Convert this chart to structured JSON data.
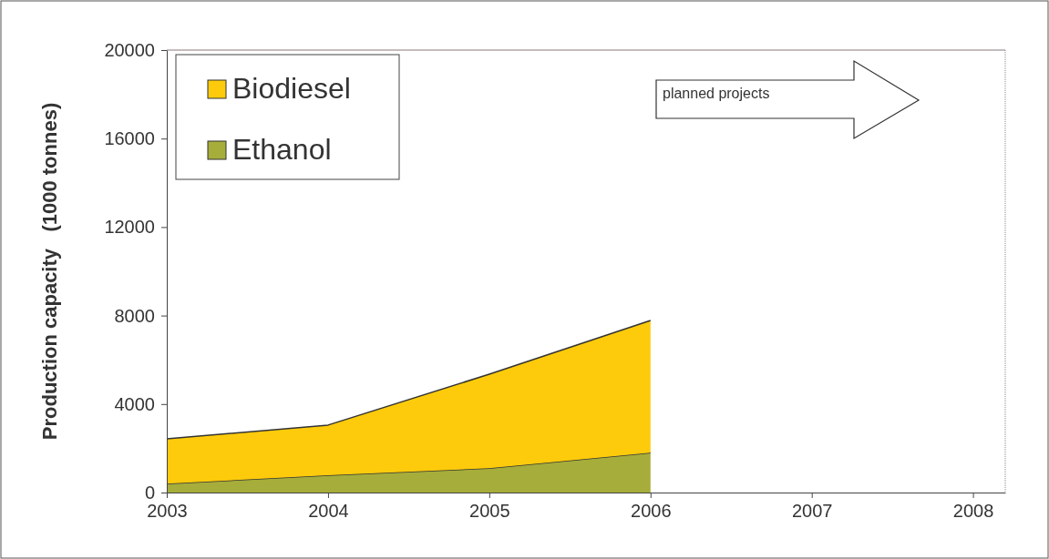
{
  "chart_data": {
    "type": "area",
    "stacked": true,
    "ylabel": "Production capacity   (1000 tonnes)",
    "x": [
      2003,
      2004,
      2005,
      2006
    ],
    "xlim": [
      2003,
      2008.2
    ],
    "xticks": [
      2003,
      2004,
      2005,
      2006,
      2007,
      2008
    ],
    "ylim": [
      0,
      20000
    ],
    "yticks": [
      0,
      4000,
      8000,
      12000,
      16000,
      20000
    ],
    "series": [
      {
        "name": "Ethanol",
        "color": "#a6ad3a",
        "values": [
          400,
          780,
          1100,
          1800
        ]
      },
      {
        "name": "Biodiesel",
        "color": "#fdcb0b",
        "values": [
          2030,
          2270,
          4250,
          5980
        ]
      }
    ],
    "legend": "top left",
    "grid": false,
    "annotations": [
      "planned projects"
    ]
  }
}
